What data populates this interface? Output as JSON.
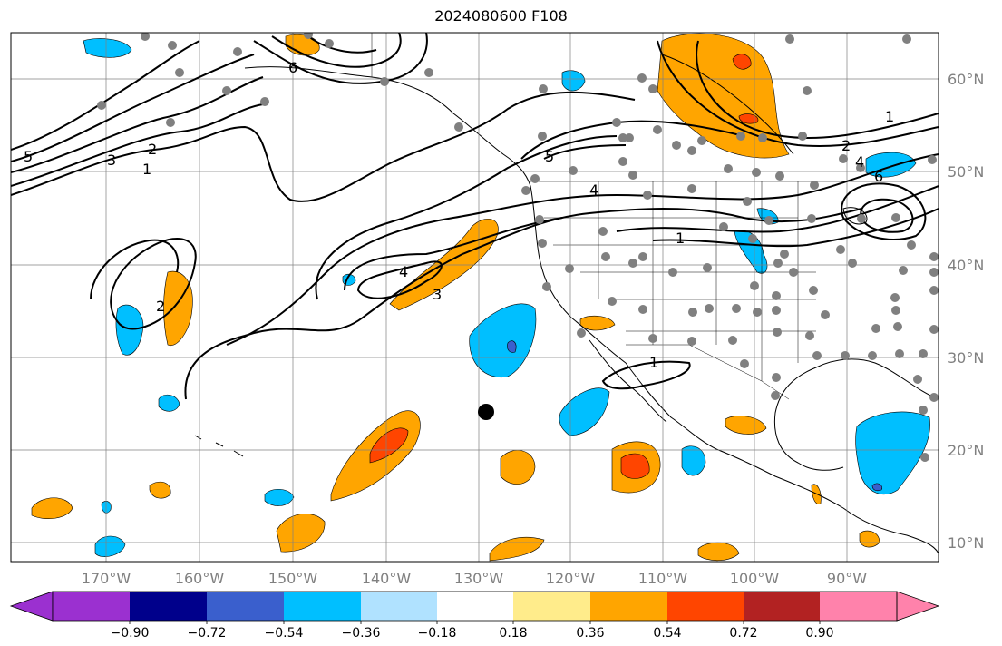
{
  "title": "2024080600 F108",
  "lon_labels": [
    "170°W",
    "160°W",
    "150°W",
    "140°W",
    "130°W",
    "120°W",
    "110°W",
    "100°W",
    "90°W"
  ],
  "lat_labels": [
    "60°N",
    "50°N",
    "40°N",
    "30°N",
    "20°N",
    "10°N"
  ],
  "contour_labels": [
    "6",
    "5",
    "3",
    "2",
    "1",
    "4",
    "3",
    "5",
    "4",
    "2",
    "1",
    "6",
    "1",
    "2",
    "4",
    "1"
  ],
  "colorbar": {
    "tick_labels": [
      "−0.90",
      "−0.72",
      "−0.54",
      "−0.36",
      "−0.18",
      "0.18",
      "0.36",
      "0.54",
      "0.72",
      "0.90"
    ],
    "colors": [
      "#9b30d0",
      "#00008b",
      "#3a5fcd",
      "#00bfff",
      "#b0e2ff",
      "#ffffff",
      "#ffec8b",
      "#ffa500",
      "#ff4500",
      "#b22222",
      "#ff82ab"
    ]
  },
  "colors": {
    "negative": "#00bfff",
    "positive": "#ffa500",
    "strong_positive": "#ff4500",
    "stations": "#808080"
  }
}
